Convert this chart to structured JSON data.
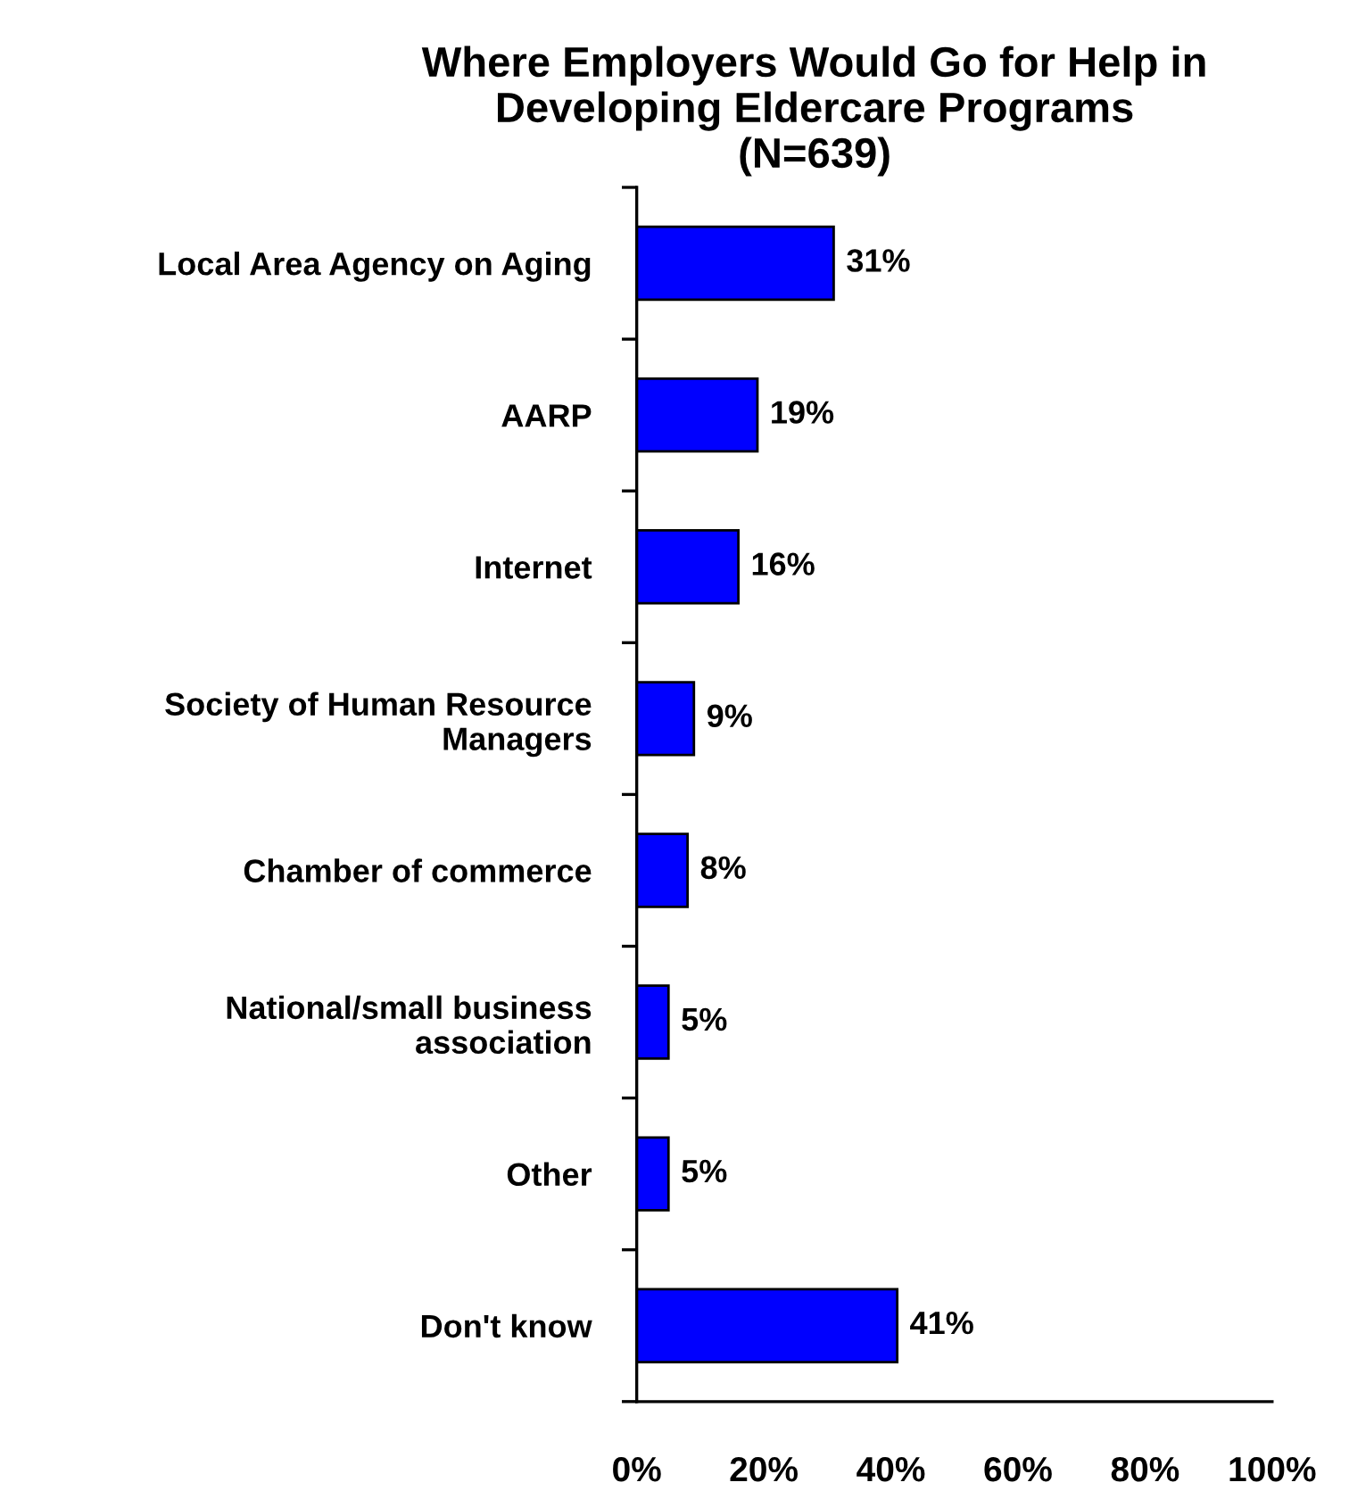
{
  "chart_data": {
    "type": "bar",
    "orientation": "horizontal",
    "title": "Where Employers Would Go for Help in\nDeveloping Eldercare Programs\n(N=639)",
    "categories": [
      "Local Area Agency on Aging",
      "AARP",
      "Internet",
      "Society of Human Resource\nManagers",
      "Chamber of commerce",
      "National/small business\nassociation",
      "Other",
      "Don't know"
    ],
    "values": [
      31,
      19,
      16,
      9,
      8,
      5,
      5,
      41
    ],
    "value_labels": [
      "31%",
      "19%",
      "16%",
      "9%",
      "8%",
      "5%",
      "5%",
      "41%"
    ],
    "color": "#0000ff",
    "xlim": [
      0,
      100
    ],
    "xticks": [
      {
        "value": 0,
        "label": "0%"
      },
      {
        "value": 20,
        "label": "20%"
      },
      {
        "value": 40,
        "label": "40%"
      },
      {
        "value": 60,
        "label": "60%"
      },
      {
        "value": 80,
        "label": "80%"
      },
      {
        "value": 100,
        "label": "100%"
      }
    ],
    "grid": false,
    "legend": false
  }
}
